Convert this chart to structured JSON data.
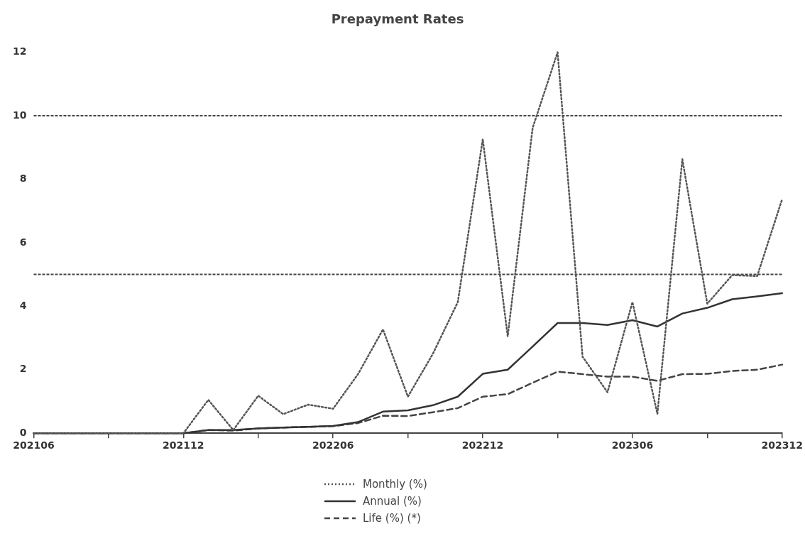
{
  "chart_data": {
    "type": "line",
    "title": "Prepayment Rates",
    "categories": [
      "202106",
      null,
      null,
      null,
      null,
      null,
      "202112",
      null,
      null,
      null,
      null,
      null,
      "202206",
      null,
      null,
      null,
      null,
      null,
      "202212",
      null,
      null,
      null,
      null,
      null,
      "202306",
      null,
      null,
      null,
      null,
      null,
      "202312"
    ],
    "series": [
      {
        "name": "Monthly (%)",
        "color": "#555555",
        "line_style": "dotted",
        "values": [
          0,
          0,
          0,
          0,
          0,
          0,
          0,
          1.05,
          0.1,
          1.18,
          0.6,
          0.9,
          0.77,
          1.86,
          3.27,
          1.15,
          2.5,
          4.13,
          9.26,
          3.05,
          9.62,
          12,
          2.41,
          1.29,
          4.13,
          0.61,
          8.63,
          4.08,
          4.98,
          4.95,
          7.37
        ]
      },
      {
        "name": "Annual (%)",
        "color": "#333333",
        "line_style": "solid",
        "values": [
          0,
          0,
          0,
          0,
          0,
          0,
          0,
          0.1,
          0.1,
          0.15,
          0.18,
          0.2,
          0.23,
          0.35,
          0.68,
          0.72,
          0.88,
          1.15,
          1.87,
          2.0,
          2.73,
          3.47,
          3.47,
          3.41,
          3.56,
          3.36,
          3.77,
          3.95,
          4.22,
          4.31,
          4.41
        ]
      },
      {
        "name": "Life (%) (*)",
        "color": "#444444",
        "line_style": "dashed",
        "values": [
          0,
          0,
          0,
          0,
          0,
          0,
          0,
          0.1,
          0.08,
          0.15,
          0.18,
          0.2,
          0.22,
          0.32,
          0.55,
          0.54,
          0.66,
          0.79,
          1.15,
          1.23,
          1.59,
          1.94,
          1.86,
          1.78,
          1.78,
          1.65,
          1.86,
          1.87,
          1.96,
          2.0,
          2.16
        ]
      }
    ],
    "ylim": [
      0,
      12
    ],
    "yticks": [
      0,
      2,
      4,
      6,
      8,
      10,
      12
    ],
    "grid": false,
    "legend": "bottom",
    "marker": "none",
    "ref_lines": [
      {
        "axis": "y",
        "value": 5,
        "line_style": "dotted",
        "color": "#444444"
      },
      {
        "axis": "y",
        "value": 10,
        "line_style": "dotted",
        "color": "#444444"
      }
    ]
  }
}
